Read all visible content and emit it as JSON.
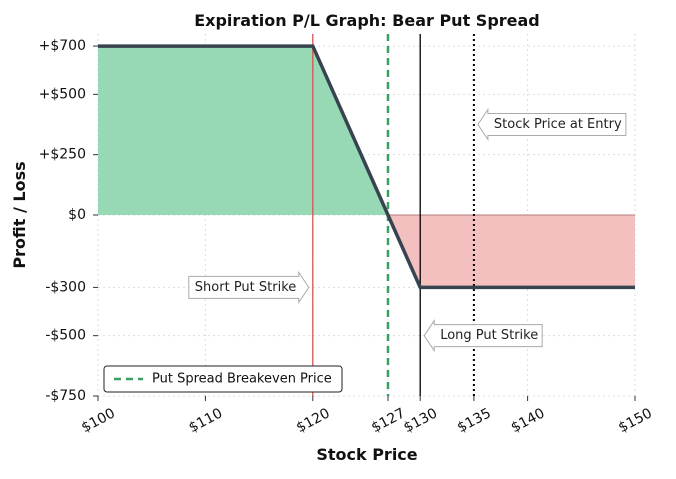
{
  "chart_data": {
    "type": "area",
    "title": "Expiration P/L Graph: Bear Put Spread",
    "xlabel": "Stock Price",
    "ylabel": "Profit / Loss",
    "xlim": [
      100,
      150
    ],
    "ylim": [
      -750,
      750
    ],
    "grid": true,
    "x_ticks": [
      {
        "value": 100,
        "label": "$100"
      },
      {
        "value": 110,
        "label": "$110"
      },
      {
        "value": 120,
        "label": "$120"
      },
      {
        "value": 127,
        "label": "$127"
      },
      {
        "value": 130,
        "label": "$130"
      },
      {
        "value": 135,
        "label": "$135"
      },
      {
        "value": 140,
        "label": "$140"
      },
      {
        "value": 150,
        "label": "$150"
      }
    ],
    "y_ticks": [
      {
        "value": 700,
        "label": "+$700"
      },
      {
        "value": 500,
        "label": "+$500"
      },
      {
        "value": 250,
        "label": "+$250"
      },
      {
        "value": 0,
        "label": "$0"
      },
      {
        "value": -300,
        "label": "-$300"
      },
      {
        "value": -500,
        "label": "-$500"
      },
      {
        "value": -750,
        "label": "-$750"
      }
    ],
    "pl_line": [
      [
        100,
        700
      ],
      [
        120,
        700
      ],
      [
        130,
        -300
      ],
      [
        150,
        -300
      ]
    ],
    "short_put_strike": 120,
    "long_put_strike": 130,
    "breakeven": 127,
    "stock_price_at_entry": 135,
    "annotations": [
      {
        "text": "Stock Price at Entry",
        "x": 135,
        "y": 375,
        "pointer": "left"
      },
      {
        "text": "Short Put Strike",
        "x": 120,
        "y": -300,
        "pointer": "right"
      },
      {
        "text": "Long Put Strike",
        "x": 130,
        "y": -500,
        "pointer": "left"
      }
    ],
    "legend": {
      "entries": [
        "Put Spread Breakeven Price"
      ],
      "placement": "lower-left"
    },
    "colors": {
      "profit_fill": "#97d8b5",
      "loss_fill": "#f4c0bf",
      "pl_line": "#37444f",
      "short_put_line": "#d9534f",
      "long_put_line": "#000000",
      "breakeven_line": "#3aa062",
      "entry_line": "#000000"
    }
  }
}
